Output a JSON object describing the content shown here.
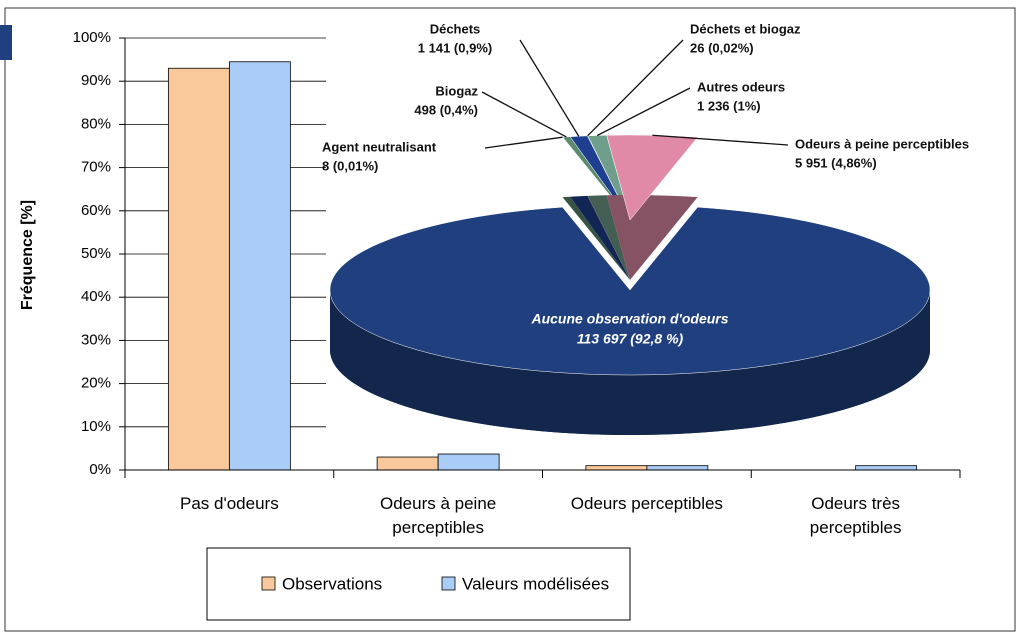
{
  "chart_data": [
    {
      "type": "bar",
      "ylabel": "Fréquence [%]",
      "categories": [
        "Pas d'odeurs",
        "Odeurs à peine perceptibles",
        "Odeurs perceptibles",
        "Odeurs très perceptibles"
      ],
      "series": [
        {
          "name": "Observations",
          "color": "#f9c89b",
          "values": [
            93,
            3,
            1,
            0
          ]
        },
        {
          "name": "Valeurs modélisées",
          "color": "#a9cdf7",
          "values": [
            94.5,
            3.7,
            1,
            1
          ]
        }
      ],
      "ylim": [
        0,
        100
      ],
      "yticks": [
        {
          "value": 0,
          "label": "0%"
        },
        {
          "value": 10,
          "label": "10%"
        },
        {
          "value": 20,
          "label": "20%"
        },
        {
          "value": 30,
          "label": "30%"
        },
        {
          "value": 40,
          "label": "40%"
        },
        {
          "value": 50,
          "label": "50%"
        },
        {
          "value": 60,
          "label": "60%"
        },
        {
          "value": 70,
          "label": "70%"
        },
        {
          "value": 80,
          "label": "80%"
        },
        {
          "value": 90,
          "label": "90%"
        },
        {
          "value": 100,
          "label": "100%"
        }
      ],
      "grid": true,
      "legend": "bottom"
    },
    {
      "type": "pie",
      "categories": [
        "Agent neutralisant",
        "Biogaz",
        "Déchets",
        "Déchets et biogaz",
        "Autres odeurs",
        "Odeurs à peine perceptibles",
        "Aucune observation d'odeurs"
      ],
      "values": [
        8,
        498,
        1141,
        26,
        1236,
        5951,
        113697
      ],
      "value_labels": [
        "8  (0,01%)",
        "498  (0,4%)",
        "1 141  (0,9%)",
        "26  (0,02%)",
        "1 236  (1%)",
        "5 951  (4,86%)",
        "113 697  (92,8 %)"
      ],
      "colors": [
        "#6a2a3a",
        "#5a8a70",
        "#1e3f8f",
        "#c06070",
        "#6f9e8a",
        "#e08aa8",
        "#1f3f7f"
      ]
    }
  ]
}
